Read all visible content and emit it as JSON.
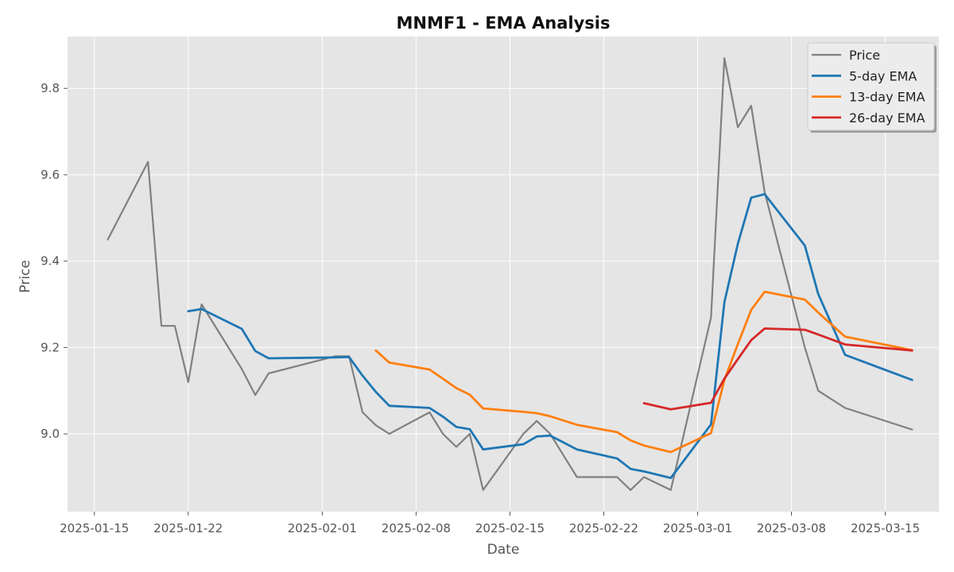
{
  "chart_data": {
    "type": "line",
    "title": "MNMF1 - EMA Analysis",
    "xlabel": "Date",
    "ylabel": "Price",
    "xlim": [
      "2025-01-13",
      "2025-03-19"
    ],
    "ylim": [
      8.82,
      9.92
    ],
    "x_ticks": [
      "2025-01-15",
      "2025-01-22",
      "2025-02-01",
      "2025-02-08",
      "2025-02-15",
      "2025-02-22",
      "2025-03-01",
      "2025-03-08",
      "2025-03-15"
    ],
    "y_ticks": [
      9.0,
      9.2,
      9.4,
      9.6,
      9.8
    ],
    "grid": true,
    "legend_position": "top-right",
    "series": [
      {
        "name": "Price",
        "color": "#808080",
        "points": [
          [
            "2025-01-16",
            9.45
          ],
          [
            "2025-01-19",
            9.63
          ],
          [
            "2025-01-20",
            9.25
          ],
          [
            "2025-01-21",
            9.25
          ],
          [
            "2025-01-22",
            9.12
          ],
          [
            "2025-01-23",
            9.3
          ],
          [
            "2025-01-26",
            9.15
          ],
          [
            "2025-01-27",
            9.09
          ],
          [
            "2025-01-28",
            9.14
          ],
          [
            "2025-02-02",
            9.18
          ],
          [
            "2025-02-03",
            9.18
          ],
          [
            "2025-02-04",
            9.05
          ],
          [
            "2025-02-05",
            9.02
          ],
          [
            "2025-02-06",
            9.0
          ],
          [
            "2025-02-09",
            9.05
          ],
          [
            "2025-02-10",
            9.0
          ],
          [
            "2025-02-11",
            8.97
          ],
          [
            "2025-02-12",
            9.0
          ],
          [
            "2025-02-13",
            8.87
          ],
          [
            "2025-02-16",
            9.0
          ],
          [
            "2025-02-17",
            9.03
          ],
          [
            "2025-02-18",
            9.0
          ],
          [
            "2025-02-20",
            8.9
          ],
          [
            "2025-02-23",
            8.9
          ],
          [
            "2025-02-24",
            8.87
          ],
          [
            "2025-02-25",
            8.9
          ],
          [
            "2025-02-27",
            8.87
          ],
          [
            "2025-03-02",
            9.27
          ],
          [
            "2025-03-03",
            9.87
          ],
          [
            "2025-03-04",
            9.71
          ],
          [
            "2025-03-05",
            9.76
          ],
          [
            "2025-03-06",
            9.56
          ],
          [
            "2025-03-09",
            9.2
          ],
          [
            "2025-03-10",
            9.1
          ],
          [
            "2025-03-12",
            9.06
          ],
          [
            "2025-03-17",
            9.01
          ]
        ]
      },
      {
        "name": "5-day EMA",
        "color": "#1f77b4",
        "points": [
          [
            "2025-01-22",
            9.284
          ],
          [
            "2025-01-23",
            9.289
          ],
          [
            "2025-01-26",
            9.243
          ],
          [
            "2025-01-27",
            9.192
          ],
          [
            "2025-01-28",
            9.175
          ],
          [
            "2025-02-02",
            9.177
          ],
          [
            "2025-02-03",
            9.178
          ],
          [
            "2025-02-04",
            9.135
          ],
          [
            "2025-02-05",
            9.097
          ],
          [
            "2025-02-06",
            9.065
          ],
          [
            "2025-02-09",
            9.06
          ],
          [
            "2025-02-10",
            9.04
          ],
          [
            "2025-02-11",
            9.016
          ],
          [
            "2025-02-12",
            9.011
          ],
          [
            "2025-02-13",
            8.964
          ],
          [
            "2025-02-16",
            8.976
          ],
          [
            "2025-02-17",
            8.994
          ],
          [
            "2025-02-18",
            8.996
          ],
          [
            "2025-02-20",
            8.964
          ],
          [
            "2025-02-23",
            8.943
          ],
          [
            "2025-02-24",
            8.919
          ],
          [
            "2025-02-25",
            8.913
          ],
          [
            "2025-02-27",
            8.898
          ],
          [
            "2025-03-02",
            9.022
          ],
          [
            "2025-03-03",
            9.305
          ],
          [
            "2025-03-04",
            9.44
          ],
          [
            "2025-03-05",
            9.547
          ],
          [
            "2025-03-06",
            9.555
          ],
          [
            "2025-03-09",
            9.436
          ],
          [
            "2025-03-10",
            9.324
          ],
          [
            "2025-03-12",
            9.183
          ],
          [
            "2025-03-17",
            9.125
          ]
        ]
      },
      {
        "name": "13-day EMA",
        "color": "#ff7f0e",
        "points": [
          [
            "2025-02-05",
            9.193
          ],
          [
            "2025-02-06",
            9.165
          ],
          [
            "2025-02-09",
            9.149
          ],
          [
            "2025-02-10",
            9.128
          ],
          [
            "2025-02-11",
            9.106
          ],
          [
            "2025-02-12",
            9.091
          ],
          [
            "2025-02-13",
            9.059
          ],
          [
            "2025-02-16",
            9.051
          ],
          [
            "2025-02-17",
            9.048
          ],
          [
            "2025-02-18",
            9.041
          ],
          [
            "2025-02-20",
            9.021
          ],
          [
            "2025-02-23",
            9.004
          ],
          [
            "2025-02-24",
            8.985
          ],
          [
            "2025-02-25",
            8.973
          ],
          [
            "2025-02-27",
            8.958
          ],
          [
            "2025-03-02",
            9.002
          ],
          [
            "2025-03-03",
            9.125
          ],
          [
            "2025-03-04",
            9.208
          ],
          [
            "2025-03-05",
            9.287
          ],
          [
            "2025-03-06",
            9.329
          ],
          [
            "2025-03-09",
            9.311
          ],
          [
            "2025-03-10",
            9.281
          ],
          [
            "2025-03-12",
            9.225
          ],
          [
            "2025-03-17",
            9.194
          ]
        ]
      },
      {
        "name": "26-day EMA",
        "color": "#d62728",
        "points": [
          [
            "2025-02-25",
            9.071
          ],
          [
            "2025-02-27",
            9.057
          ],
          [
            "2025-03-02",
            9.072
          ],
          [
            "2025-03-03",
            9.128
          ],
          [
            "2025-03-04",
            9.173
          ],
          [
            "2025-03-05",
            9.217
          ],
          [
            "2025-03-06",
            9.244
          ],
          [
            "2025-03-09",
            9.241
          ],
          [
            "2025-03-10",
            9.23
          ],
          [
            "2025-03-12",
            9.207
          ],
          [
            "2025-03-17",
            9.193
          ]
        ]
      }
    ]
  }
}
